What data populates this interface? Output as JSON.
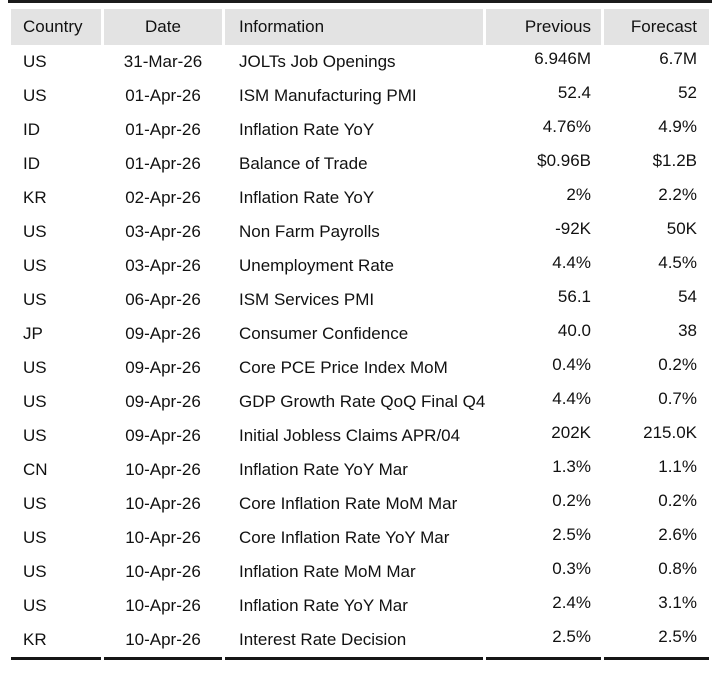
{
  "chart_data": {
    "type": "table",
    "columns": [
      "Country",
      "Date",
      "Information",
      "Previous",
      "Forecast"
    ],
    "rows": [
      [
        "US",
        "31-Mar-26",
        "JOLTs Job Openings",
        "6.946M",
        "6.7M"
      ],
      [
        "US",
        "01-Apr-26",
        "ISM Manufacturing PMI",
        "52.4",
        "52"
      ],
      [
        "ID",
        "01-Apr-26",
        "Inflation Rate YoY",
        "4.76%",
        "4.9%"
      ],
      [
        "ID",
        "01-Apr-26",
        "Balance of Trade",
        "$0.96B",
        "$1.2B"
      ],
      [
        "KR",
        "02-Apr-26",
        "Inflation Rate YoY",
        "2%",
        "2.2%"
      ],
      [
        "US",
        "03-Apr-26",
        "Non Farm Payrolls",
        "-92K",
        "50K"
      ],
      [
        "US",
        "03-Apr-26",
        "Unemployment Rate",
        "4.4%",
        "4.5%"
      ],
      [
        "US",
        "06-Apr-26",
        "ISM Services PMI",
        "56.1",
        "54"
      ],
      [
        "JP",
        "09-Apr-26",
        "Consumer Confidence",
        "40.0",
        "38"
      ],
      [
        "US",
        "09-Apr-26",
        "Core PCE Price Index MoM",
        "0.4%",
        "0.2%"
      ],
      [
        "US",
        "09-Apr-26",
        "GDP Growth Rate QoQ Final Q4",
        "4.4%",
        "0.7%"
      ],
      [
        "US",
        "09-Apr-26",
        "Initial Jobless Claims APR/04",
        "202K",
        "215.0K"
      ],
      [
        "CN",
        "10-Apr-26",
        "Inflation Rate YoY Mar",
        "1.3%",
        "1.1%"
      ],
      [
        "US",
        "10-Apr-26",
        "Core Inflation Rate MoM Mar",
        "0.2%",
        "0.2%"
      ],
      [
        "US",
        "10-Apr-26",
        "Core Inflation Rate YoY Mar",
        "2.5%",
        "2.6%"
      ],
      [
        "US",
        "10-Apr-26",
        "Inflation Rate MoM Mar",
        "0.3%",
        "0.8%"
      ],
      [
        "US",
        "10-Apr-26",
        "Inflation Rate YoY Mar",
        "2.4%",
        "3.1%"
      ],
      [
        "KR",
        "10-Apr-26",
        "Interest Rate Decision",
        "2.5%",
        "2.5%"
      ]
    ],
    "title": "",
    "layout": {
      "header_background": "#e3e3e3",
      "rule_color": "#1b1b1b",
      "text_color": "#111111",
      "grid": "off"
    }
  }
}
